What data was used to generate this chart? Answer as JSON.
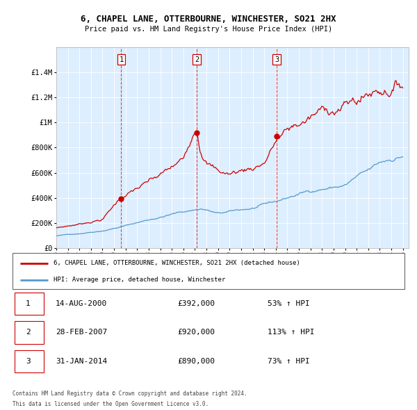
{
  "title": "6, CHAPEL LANE, OTTERBOURNE, WINCHESTER, SO21 2HX",
  "subtitle": "Price paid vs. HM Land Registry's House Price Index (HPI)",
  "footer1": "Contains HM Land Registry data © Crown copyright and database right 2024.",
  "footer2": "This data is licensed under the Open Government Licence v3.0.",
  "legend_red": "6, CHAPEL LANE, OTTERBOURNE, WINCHESTER, SO21 2HX (detached house)",
  "legend_blue": "HPI: Average price, detached house, Winchester",
  "sales": [
    {
      "num": 1,
      "date": "14-AUG-2000",
      "price": 392000,
      "pct": "53%",
      "dir": "↑"
    },
    {
      "num": 2,
      "date": "28-FEB-2007",
      "price": 920000,
      "pct": "113%",
      "dir": "↑"
    },
    {
      "num": 3,
      "date": "31-JAN-2014",
      "price": 890000,
      "pct": "73%",
      "dir": "↑"
    }
  ],
  "sale_years": [
    2000.62,
    2007.16,
    2014.08
  ],
  "sale_prices": [
    392000,
    920000,
    890000
  ],
  "ylim": [
    0,
    1600000
  ],
  "yticks": [
    0,
    200000,
    400000,
    600000,
    800000,
    1000000,
    1200000,
    1400000
  ],
  "ytick_labels": [
    "£0",
    "£200K",
    "£400K",
    "£600K",
    "£800K",
    "£1M",
    "£1.2M",
    "£1.4M"
  ],
  "red_color": "#cc0000",
  "blue_color": "#5599cc",
  "plot_bg": "#ddeeff",
  "grid_color": "#ffffff",
  "bg_color": "#ffffff",
  "vline_color": "#cc0000",
  "xlim_start": 1995,
  "xlim_end": 2025.5
}
